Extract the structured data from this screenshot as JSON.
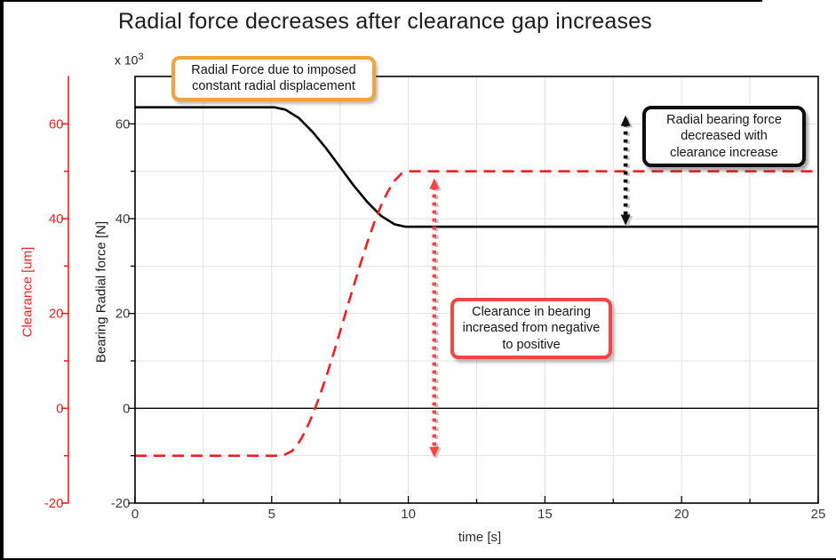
{
  "title": "Radial force decreases after clearance gap increases",
  "axis_scale": {
    "base": "x 10",
    "exponent": "3"
  },
  "colors": {
    "force_series": "#000000",
    "clearance_series": "#ee2020",
    "grid": "#e2e2e2",
    "frame": "#000000",
    "tick_text": "#3a3a3a",
    "orange_callout_border": "#f2a33c",
    "black_callout_border": "#0d0d0d",
    "red_callout_border": "#f54545",
    "black_arrow": "#111111",
    "red_arrow": "#f54545",
    "arrow_shadow": "#c6c6c6"
  },
  "chart_data": {
    "type": "line",
    "title": "Radial force decreases after clearance gap increases",
    "xlabel": "time [s]",
    "ylabel": "Bearing Radial force [N]",
    "y2label": "Clearance [um]",
    "y_unit_note": "force axis values are x 10^3 N",
    "xlim": [
      0,
      25
    ],
    "ylim": [
      -20,
      70
    ],
    "xticks": [
      0,
      5,
      10,
      15,
      20,
      25
    ],
    "yticks": [
      -20,
      0,
      20,
      40,
      60
    ],
    "x_minor_step": 2.5,
    "y_minor_step": 10,
    "grid": true,
    "legend": "none",
    "series": [
      {
        "name": "Bearing Radial force",
        "color": "#000000",
        "line_style": "solid",
        "axis": "force (x 10^3 N)",
        "flat_start_value": 63.5,
        "flat_end_value": 38.3,
        "x": [
          0,
          5.1,
          5.5,
          6.0,
          6.5,
          7.0,
          7.5,
          8.0,
          8.5,
          9.0,
          9.5,
          9.9,
          25
        ],
        "y": [
          63.5,
          63.5,
          63.0,
          61.2,
          58.3,
          54.8,
          50.9,
          47.0,
          43.5,
          40.6,
          38.8,
          38.3,
          38.3
        ]
      },
      {
        "name": "Clearance",
        "color": "#ee2020",
        "line_style": "dashed",
        "axis": "clearance (um)",
        "flat_start_value": -10,
        "flat_end_value": 50,
        "x": [
          0,
          5.4,
          5.75,
          6.0,
          6.25,
          6.5,
          6.75,
          7.0,
          7.25,
          7.5,
          7.75,
          8.0,
          8.25,
          8.5,
          8.75,
          9.0,
          9.25,
          9.5,
          9.75,
          10.0,
          25
        ],
        "y": [
          -10,
          -10,
          -9.0,
          -7.2,
          -4.6,
          -1.4,
          2.5,
          6.7,
          11.3,
          16.1,
          21.0,
          25.8,
          30.5,
          35.0,
          39.1,
          42.7,
          45.7,
          48.0,
          49.5,
          50,
          50
        ]
      }
    ],
    "annotations": {
      "boxes": [
        {
          "id": "imposed-displacement",
          "lines": [
            "Radial Force due to imposed",
            "constant radial displacement"
          ],
          "border_color": "#f2a33c"
        },
        {
          "id": "force-decreased",
          "lines": [
            "Radial bearing force",
            "decreased with",
            "clearance increase"
          ],
          "border_color": "#0d0d0d"
        },
        {
          "id": "clearance-increased",
          "lines": [
            "Clearance in bearing",
            "increased from negative",
            "to positive"
          ],
          "border_color": "#f54545"
        }
      ],
      "arrows": [
        {
          "id": "force-drop-arrow",
          "color": "#111111",
          "t": 17.95,
          "v_from": 61.8,
          "v_to": 38.6
        },
        {
          "id": "clearance-rise-arrow",
          "color": "#f54545",
          "t": 10.95,
          "v_from": 48.5,
          "v_to": -10.4
        }
      ]
    }
  }
}
